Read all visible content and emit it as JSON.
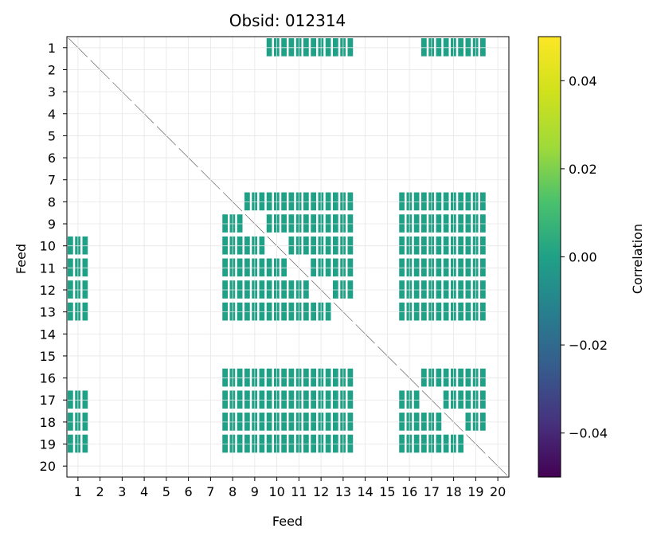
{
  "chart_data": {
    "type": "heatmap",
    "title": "Obsid: 012314",
    "xlabel": "Feed",
    "ylabel": "Feed",
    "x_ticks": [
      "1",
      "2",
      "3",
      "4",
      "5",
      "6",
      "7",
      "8",
      "9",
      "10",
      "11",
      "12",
      "13",
      "14",
      "15",
      "16",
      "17",
      "18",
      "19",
      "20"
    ],
    "y_ticks": [
      "1",
      "2",
      "3",
      "4",
      "5",
      "6",
      "7",
      "8",
      "9",
      "10",
      "11",
      "12",
      "13",
      "14",
      "15",
      "16",
      "17",
      "18",
      "19",
      "20"
    ],
    "grid": true,
    "colormap": "viridis",
    "colorbar": {
      "label": "Correlation",
      "range": [
        -0.05,
        0.05
      ],
      "ticks": [
        "0.04",
        "0.02",
        "0.00",
        "−0.02",
        "−0.04"
      ],
      "tick_values": [
        0.04,
        0.02,
        0.0,
        -0.02,
        -0.04
      ]
    },
    "masked_color": "#ffffff",
    "cell_value": 0.0,
    "blocks": [
      {
        "rows": [
          8,
          13
        ],
        "cols": [
          8,
          13
        ]
      },
      {
        "rows": [
          8,
          13
        ],
        "cols": [
          16,
          19
        ]
      },
      {
        "rows": [
          17,
          19
        ],
        "cols": [
          8,
          13
        ]
      },
      {
        "rows": [
          17,
          19
        ],
        "cols": [
          16,
          19
        ]
      },
      {
        "rows": [
          16,
          16
        ],
        "cols": [
          8,
          13
        ]
      },
      {
        "rows": [
          16,
          16
        ],
        "cols": [
          17,
          19
        ]
      },
      {
        "rows": [
          1,
          1
        ],
        "cols": [
          10,
          13
        ]
      },
      {
        "rows": [
          1,
          1
        ],
        "cols": [
          17,
          19
        ]
      },
      {
        "rows": [
          10,
          13
        ],
        "cols": [
          1,
          1
        ]
      },
      {
        "rows": [
          17,
          19
        ],
        "cols": [
          1,
          1
        ]
      }
    ]
  }
}
